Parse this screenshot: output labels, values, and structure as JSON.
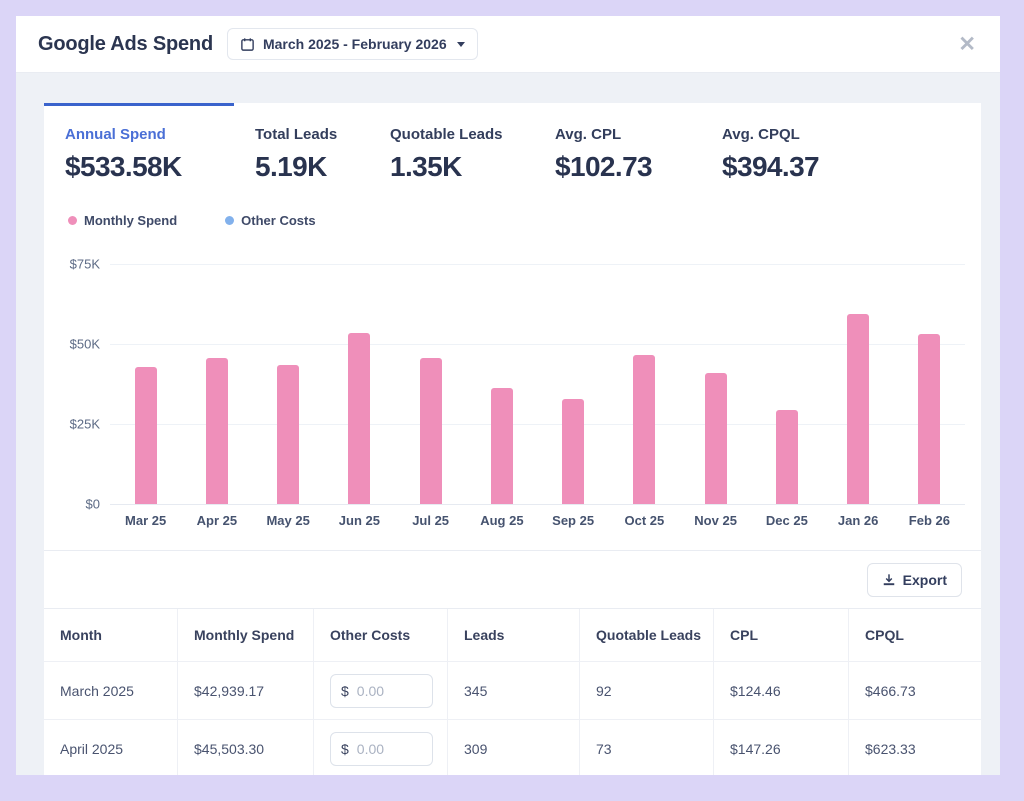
{
  "header": {
    "title": "Google Ads Spend",
    "date_range": "March 2025 - February 2026",
    "close_glyph": "✕"
  },
  "stats": [
    {
      "label": "Annual Spend",
      "value": "$533.58K",
      "active": true
    },
    {
      "label": "Total Leads",
      "value": "5.19K",
      "active": false
    },
    {
      "label": "Quotable Leads",
      "value": "1.35K",
      "active": false
    },
    {
      "label": "Avg. CPL",
      "value": "$102.73",
      "active": false
    },
    {
      "label": "Avg. CPQL",
      "value": "$394.37",
      "active": false
    }
  ],
  "legend": [
    {
      "label": "Monthly Spend",
      "color": "#ef8fba"
    },
    {
      "label": "Other Costs",
      "color": "#82b1ec"
    }
  ],
  "chart_data": {
    "type": "bar",
    "categories": [
      "Mar 25",
      "Apr 25",
      "May 25",
      "Jun 25",
      "Jul 25",
      "Aug 25",
      "Sep 25",
      "Oct 25",
      "Nov 25",
      "Dec 25",
      "Jan 26",
      "Feb 26"
    ],
    "series": [
      {
        "name": "Monthly Spend",
        "color": "#ef8fba",
        "values": [
          42939,
          45503,
          43500,
          53400,
          45600,
          36300,
          32800,
          46600,
          41000,
          29400,
          59400,
          53100
        ]
      },
      {
        "name": "Other Costs",
        "color": "#82b1ec",
        "values": [
          0,
          0,
          0,
          0,
          0,
          0,
          0,
          0,
          0,
          0,
          0,
          0
        ]
      }
    ],
    "title": "",
    "xlabel": "",
    "ylabel": "",
    "ylim": [
      0,
      75000
    ],
    "yticks": [
      {
        "label": "$75K",
        "value": 75000
      },
      {
        "label": "$50K",
        "value": 50000
      },
      {
        "label": "$25K",
        "value": 25000
      },
      {
        "label": "$0",
        "value": 0
      }
    ],
    "grid": true,
    "legend_position": "top-left"
  },
  "export": {
    "label": "Export"
  },
  "table": {
    "columns": [
      "Month",
      "Monthly Spend",
      "Other Costs",
      "Leads",
      "Quotable Leads",
      "CPL",
      "CPQL"
    ],
    "rows": [
      {
        "month": "March 2025",
        "monthly_spend": "$42,939.17",
        "other_costs_prefix": "$",
        "other_costs_placeholder": "0.00",
        "leads": "345",
        "quotable_leads": "92",
        "cpl": "$124.46",
        "cpql": "$466.73"
      },
      {
        "month": "April 2025",
        "monthly_spend": "$45,503.30",
        "other_costs_prefix": "$",
        "other_costs_placeholder": "0.00",
        "leads": "309",
        "quotable_leads": "73",
        "cpl": "$147.26",
        "cpql": "$623.33"
      }
    ]
  },
  "colors": {
    "accent_blue": "#3a63cc",
    "accent_blue_text": "#4a6fd6",
    "bar_pink": "#ef8fba",
    "legend_blue": "#82b1ec",
    "page_background": "#dbd5f7",
    "panel_background": "#eef1f6",
    "dark_text": "#29334f"
  }
}
